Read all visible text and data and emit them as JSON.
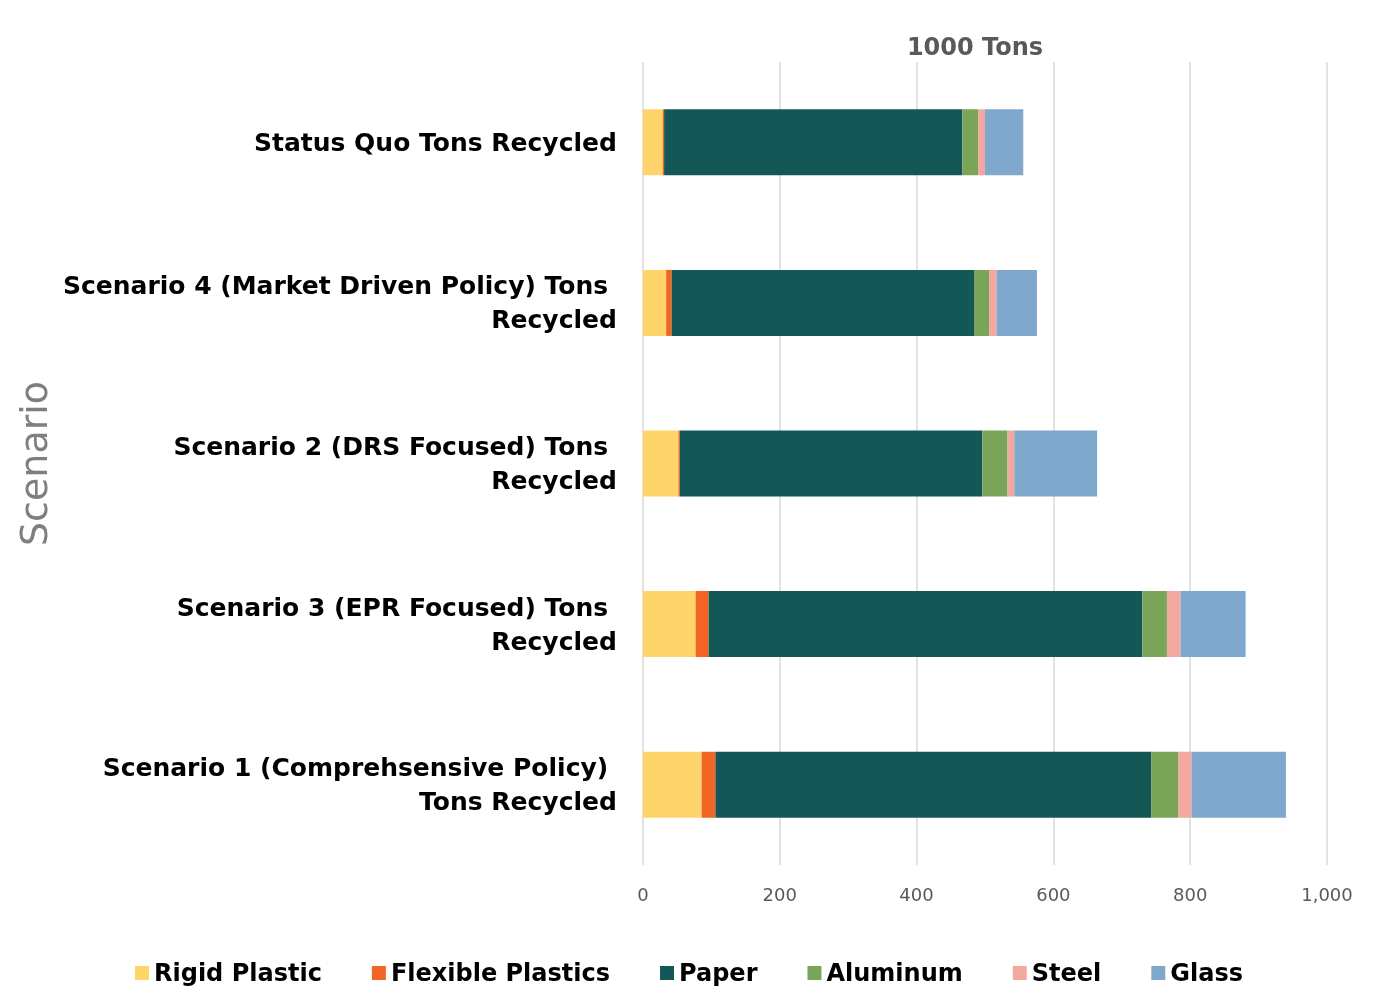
{
  "chart_data": {
    "type": "bar",
    "orientation": "horizontal",
    "stacked": true,
    "xlabel": "1000 Tons",
    "ylabel": "Scenario",
    "categories": [
      "Status Quo Tons Recycled",
      "Scenario 4 (Market Driven Policy) Tons Recycled",
      "Scenario 2 (DRS Focused) Tons Recycled",
      "Scenario 3 (EPR Focused) Tons Recycled",
      "Scenario 1 (Comprehsensive Policy) Tons Recycled"
    ],
    "series": [
      {
        "name": "Rigid Plastic",
        "color": "#ffd56b",
        "values": [
          29,
          34,
          52,
          77,
          86
        ]
      },
      {
        "name": "Flexible Plastics",
        "color": "#f26522",
        "values": [
          2,
          8,
          2,
          19,
          20
        ]
      },
      {
        "name": "Paper",
        "color": "#145757",
        "values": [
          436,
          442,
          442,
          634,
          637
        ]
      },
      {
        "name": "Aluminum",
        "color": "#7aa457",
        "values": [
          23,
          22,
          37,
          36,
          40
        ]
      },
      {
        "name": "Steel",
        "color": "#f2a89e",
        "values": [
          10,
          11,
          10,
          20,
          19
        ]
      },
      {
        "name": "Glass",
        "color": "#80a8cc",
        "values": [
          56,
          59,
          121,
          95,
          138
        ]
      }
    ],
    "xlim": [
      0,
      1000
    ],
    "xticks": [
      0,
      200,
      400,
      600,
      800,
      {
        "value": 1000,
        "label": "1,000"
      }
    ],
    "grid": "x",
    "legend": "bottom"
  }
}
